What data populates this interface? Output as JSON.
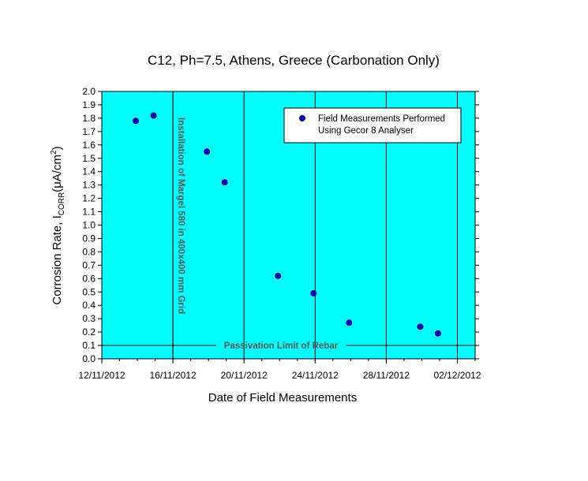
{
  "chart_data": {
    "type": "scatter",
    "title": "C12, Ph=7.5, Athens, Greece (Carbonation Only)",
    "xlabel": "Date of Field Measurements",
    "ylabel": {
      "main": "Corrosion Rate, I",
      "subscript": "CORR",
      "paren_open": "(",
      "mu": "μ",
      "unit": "A/cm",
      "superscript": "2",
      "paren_close": ")"
    },
    "xlim": [
      "2012-11-12",
      "2012-12-03"
    ],
    "ylim": [
      0,
      2.0
    ],
    "x_ticks": [
      "2012-11-12",
      "2012-11-16",
      "2012-11-20",
      "2012-11-24",
      "2012-11-28",
      "2012-12-02"
    ],
    "x_tick_labels": [
      "12/11/2012",
      "16/11/2012",
      "20/11/2012",
      "24/11/2012",
      "28/11/2012",
      "02/12/2012"
    ],
    "y_ticks": [
      0.0,
      0.1,
      0.2,
      0.3,
      0.4,
      0.5,
      0.6,
      0.7,
      0.8,
      0.9,
      1.0,
      1.1,
      1.2,
      1.3,
      1.4,
      1.5,
      1.6,
      1.7,
      1.8,
      1.9,
      2.0
    ],
    "y_tick_labels": [
      "0.0",
      "0.1",
      "0.2",
      "0.3",
      "0.4",
      "0.5",
      "0.6",
      "0.7",
      "0.8",
      "0.9",
      "1.0",
      "1.1",
      "1.2",
      "1.3",
      "1.4",
      "1.5",
      "1.6",
      "1.7",
      "1.8",
      "1.9",
      "2.0"
    ],
    "grid": "vertical lines at x ticks",
    "series": [
      {
        "name_line1": "Field Measurements Performed",
        "name_line2": "Using Gecor 8 Analyser",
        "marker": "circle",
        "x": [
          "2012-11-14",
          "2012-11-15",
          "2012-11-18",
          "2012-11-19",
          "2012-11-22",
          "2012-11-24",
          "2012-11-26",
          "2012-11-30",
          "2012-12-01"
        ],
        "y": [
          1.78,
          1.82,
          1.55,
          1.32,
          0.62,
          0.49,
          0.27,
          0.24,
          0.19
        ]
      }
    ],
    "legend": "top-right",
    "annotations": {
      "vertical_line_date": "2012-11-16",
      "vertical_text": "Installation of Margel 580 in 400x400 mm Grid",
      "horizontal_line_y": 0.1,
      "horizontal_text": "Passivation Limit of Rebar"
    },
    "colors": {
      "plot_background": "#00ffff",
      "marker_fill": "#0000cc",
      "marker_stroke": "#000066",
      "annotation_text": "#555555"
    }
  }
}
